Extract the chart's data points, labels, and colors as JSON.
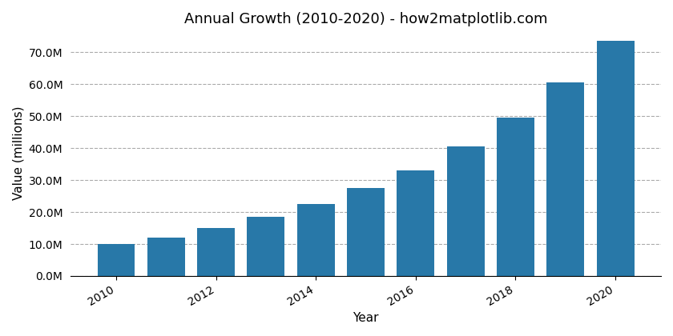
{
  "years": [
    2010,
    2011,
    2012,
    2013,
    2014,
    2015,
    2016,
    2017,
    2018,
    2019,
    2020
  ],
  "values": [
    10000000,
    12000000,
    15000000,
    18500000,
    22500000,
    27500000,
    33000000,
    40500000,
    49500000,
    60500000,
    73500000
  ],
  "bar_color": "#2878a8",
  "title": "Annual Growth (2010-2020) - how2matplotlib.com",
  "xlabel": "Year",
  "ylabel": "Value (millions)",
  "ylim_max": 77000000,
  "ytick_step": 10000000,
  "ytick_max": 70000000,
  "grid_color": "#aaaaaa",
  "grid_style": "--",
  "grid_alpha": 1.0,
  "title_fontsize": 13,
  "axis_label_fontsize": 11,
  "tick_fontsize": 10,
  "background_color": "#ffffff",
  "bar_width": 0.75
}
